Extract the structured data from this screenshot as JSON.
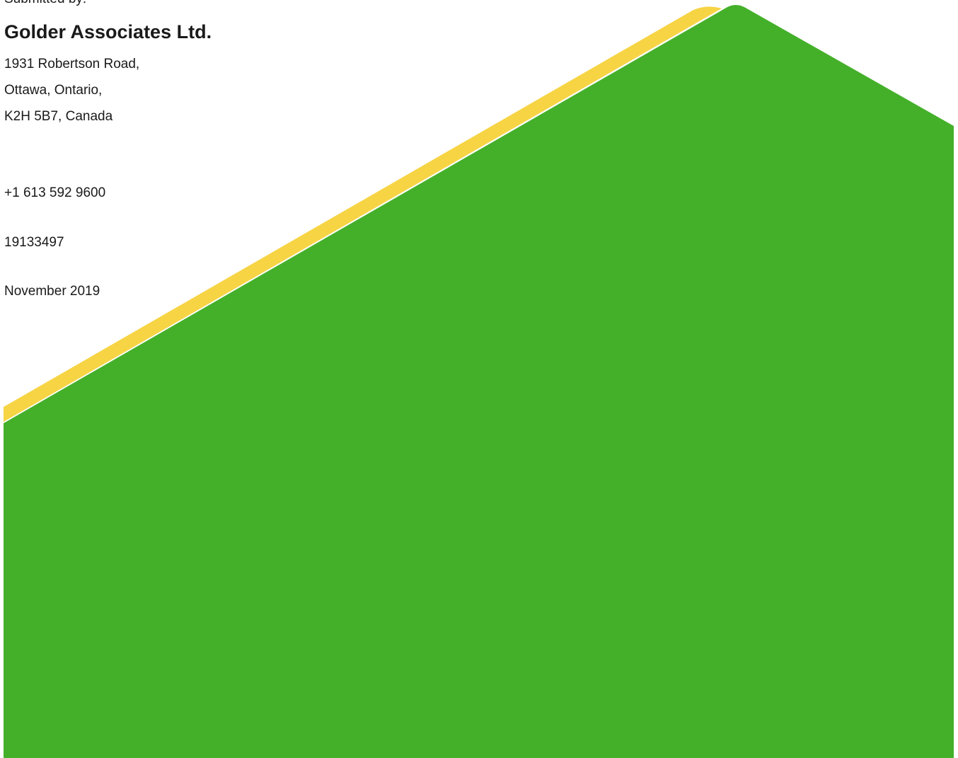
{
  "submitter": {
    "label": "Submitted by:",
    "company": "Golder Associates Ltd.",
    "address_line_1": "1931 Robertson Road,",
    "address_line_2": "Ottawa, Ontario,",
    "address_line_3": "K2H 5B7, Canada"
  },
  "contact": {
    "phone": "+1 613 592 9600"
  },
  "project": {
    "number": "19133497"
  },
  "report": {
    "date": "November 2019"
  },
  "colors": {
    "green": "#44b02a",
    "yellow": "#f6d444",
    "text": "#1a1a1a",
    "background": "#ffffff"
  }
}
